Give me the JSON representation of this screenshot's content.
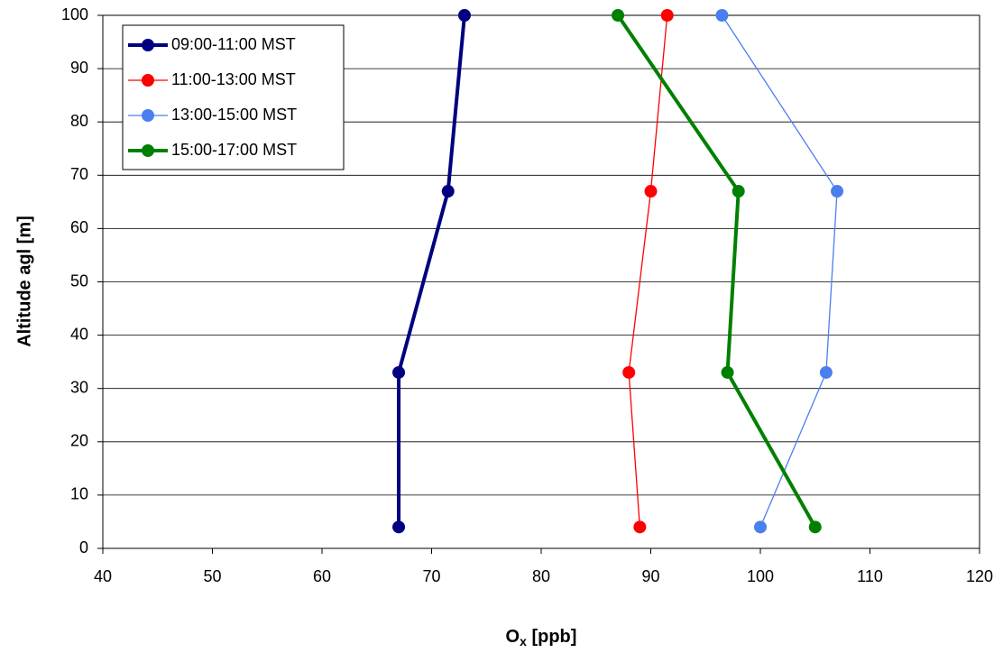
{
  "chart_data": {
    "type": "line",
    "xlabel_parts": [
      "O",
      "x",
      " [ppb]"
    ],
    "ylabel": "Altitude agl [m]",
    "xlim": [
      40,
      120
    ],
    "xticks": [
      40,
      50,
      60,
      70,
      80,
      90,
      100,
      110,
      120
    ],
    "ylim": [
      0,
      100
    ],
    "yticks": [
      0,
      10,
      20,
      30,
      40,
      50,
      60,
      70,
      80,
      90,
      100
    ],
    "grid": true,
    "legend": "upper left",
    "series": [
      {
        "name": "09:00-11:00 MST",
        "color": "#000080",
        "line_width": 4,
        "x": [
          67,
          67,
          71.5,
          73
        ],
        "values": [
          4,
          33,
          67,
          100
        ]
      },
      {
        "name": "11:00-13:00 MST",
        "color": "#ff0000",
        "line_width": 1.3,
        "x": [
          89,
          88,
          90,
          91.5
        ],
        "values": [
          4,
          33,
          67,
          100
        ]
      },
      {
        "name": "13:00-15:00 MST",
        "color": "#4a7ff0",
        "line_width": 1.3,
        "x": [
          100,
          106,
          107,
          96.5
        ],
        "values": [
          4,
          33,
          67,
          100
        ]
      },
      {
        "name": "15:00-17:00 MST",
        "color": "#008000",
        "line_width": 4,
        "x": [
          105,
          97,
          98,
          87
        ],
        "values": [
          4,
          33,
          67,
          100
        ]
      }
    ]
  }
}
